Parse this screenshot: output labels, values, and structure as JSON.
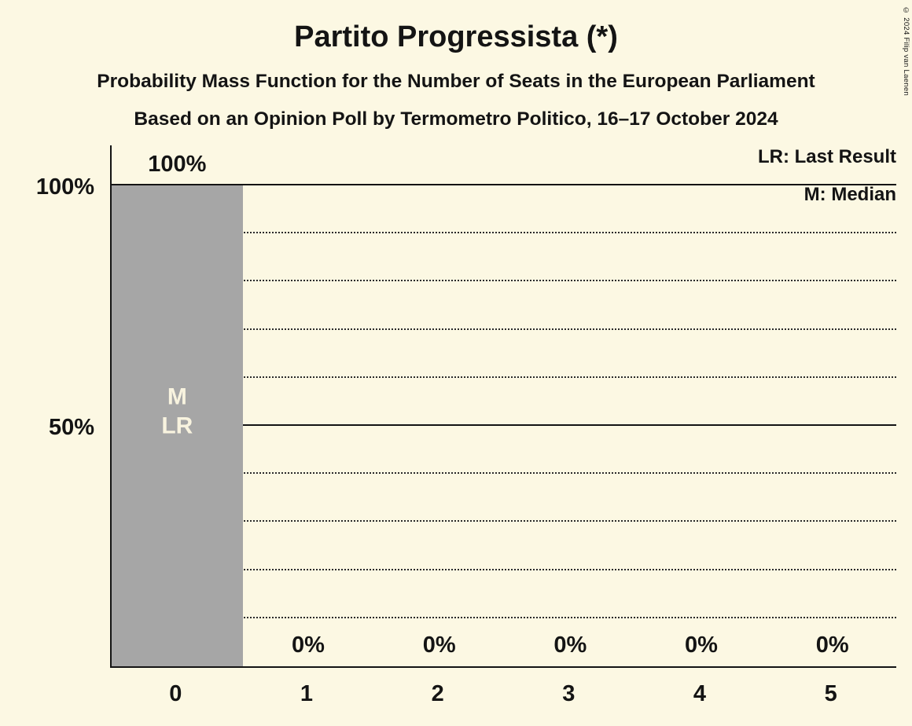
{
  "page": {
    "background": "#FCF8E3",
    "text_color": "#141414"
  },
  "header": {
    "title": "Partito Progressista (*)",
    "subtitle": "Probability Mass Function for the Number of Seats in the European Parliament",
    "source_line": "Based on an Opinion Poll by Termometro Politico, 16–17 October 2024"
  },
  "legend": {
    "last_result": "LR: Last Result",
    "median": "M: Median"
  },
  "copyright": "© 2024 Filip van Laenen",
  "chart_data": {
    "type": "bar",
    "title": "Partito Progressista (*)",
    "xlabel": "",
    "ylabel": "",
    "categories": [
      "0",
      "1",
      "2",
      "3",
      "4",
      "5"
    ],
    "values": [
      100,
      0,
      0,
      0,
      0,
      0
    ],
    "bar_labels": [
      "100%",
      "0%",
      "0%",
      "0%",
      "0%",
      "0%"
    ],
    "ylim": [
      0,
      100
    ],
    "yticks": [
      {
        "value": 100,
        "label": "100%"
      },
      {
        "value": 50,
        "label": "50%"
      }
    ],
    "solid_gridlines": [
      100,
      50
    ],
    "dotted_gridlines": [
      90,
      80,
      70,
      60,
      40,
      30,
      20,
      10
    ],
    "bar_color": "#A6A6A6",
    "annotation_color": "#F8F3DF",
    "annotations": [
      {
        "category_index": 0,
        "lines": [
          "M",
          "LR"
        ]
      }
    ],
    "legend_position": "top-right",
    "grid": "horizontal"
  }
}
